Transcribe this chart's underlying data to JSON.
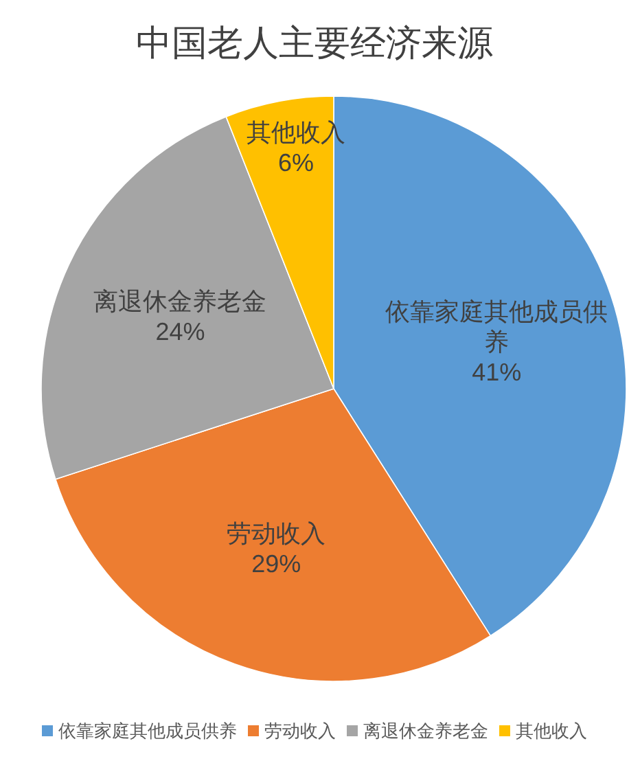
{
  "chart_data": {
    "type": "pie",
    "title": "中国老人主要经济来源",
    "categories": [
      "依靠家庭其他成员供养",
      "劳动收入",
      "离退休金养老金",
      "其他收入"
    ],
    "values": [
      41,
      29,
      24,
      6
    ],
    "value_labels": [
      "41%",
      "29%",
      "24%",
      "6%"
    ],
    "colors": [
      "#5b9bd5",
      "#ed7d31",
      "#a5a5a5",
      "#ffc000"
    ],
    "legend": "bottom"
  }
}
